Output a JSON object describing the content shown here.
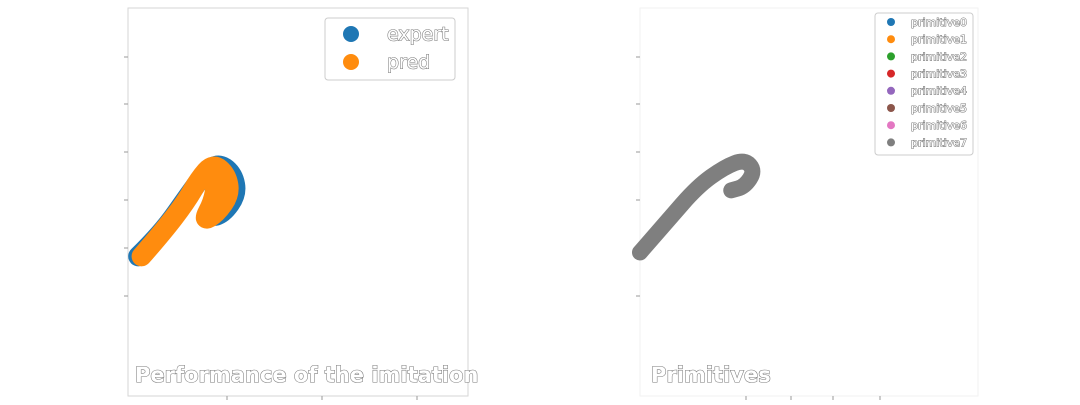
{
  "chart_data": [
    {
      "type": "scatter",
      "title": "Performance of the imitation",
      "legend": {
        "placement": "top-right",
        "frame": true
      },
      "grid": false,
      "series": [
        {
          "name": "expert",
          "color": "#1f77b4",
          "trajectory": [
            [
              0.03,
              0.36
            ],
            [
              0.1,
              0.42
            ],
            [
              0.18,
              0.52
            ],
            [
              0.23,
              0.58
            ],
            [
              0.27,
              0.6
            ],
            [
              0.31,
              0.57
            ],
            [
              0.32,
              0.52
            ],
            [
              0.28,
              0.47
            ],
            [
              0.24,
              0.46
            ],
            [
              0.27,
              0.51
            ],
            [
              0.28,
              0.55
            ]
          ]
        },
        {
          "name": "pred",
          "color": "#ff8c0e",
          "trajectory": [
            [
              0.04,
              0.36
            ],
            [
              0.1,
              0.42
            ],
            [
              0.17,
              0.5
            ],
            [
              0.21,
              0.56
            ],
            [
              0.25,
              0.6
            ],
            [
              0.29,
              0.57
            ],
            [
              0.3,
              0.52
            ],
            [
              0.26,
              0.47
            ],
            [
              0.22,
              0.45
            ],
            [
              0.25,
              0.5
            ],
            [
              0.26,
              0.55
            ]
          ]
        }
      ]
    },
    {
      "type": "scatter",
      "title": "Primitives",
      "legend": {
        "placement": "top-right",
        "frame": true
      },
      "grid": false,
      "series": [
        {
          "name": "primitive0",
          "color": "#1f77b4",
          "trajectory": []
        },
        {
          "name": "primitive1",
          "color": "#ff8c0e",
          "trajectory": []
        },
        {
          "name": "primitive2",
          "color": "#2ca02c",
          "trajectory": []
        },
        {
          "name": "primitive3",
          "color": "#d62728",
          "trajectory": []
        },
        {
          "name": "primitive4",
          "color": "#9467bd",
          "trajectory": []
        },
        {
          "name": "primitive5",
          "color": "#8c564b",
          "trajectory": []
        },
        {
          "name": "primitive6",
          "color": "#e377c2",
          "trajectory": []
        },
        {
          "name": "primitive7",
          "color": "#7f7f7f",
          "trajectory": [
            [
              0.0,
              0.37
            ],
            [
              0.08,
              0.45
            ],
            [
              0.17,
              0.54
            ],
            [
              0.25,
              0.59
            ],
            [
              0.31,
              0.61
            ],
            [
              0.34,
              0.58
            ],
            [
              0.31,
              0.54
            ],
            [
              0.27,
              0.53
            ]
          ]
        }
      ]
    }
  ]
}
